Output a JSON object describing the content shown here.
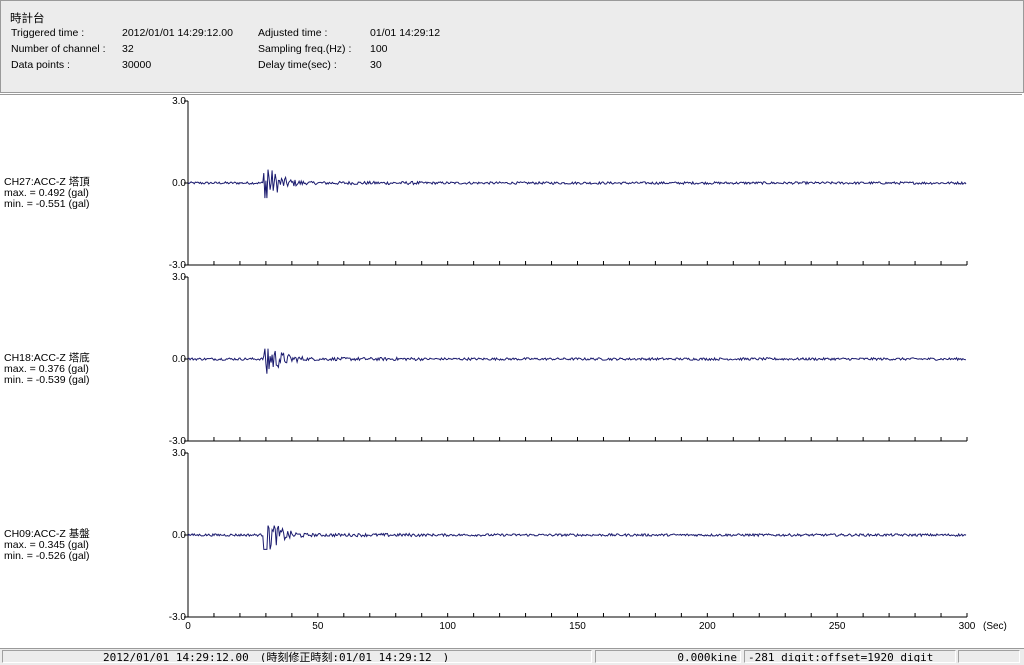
{
  "header": {
    "title": "時計台",
    "triggered_label": "Triggered time :",
    "triggered_value": "2012/01/01 14:29:12.00",
    "channels_label": "Number of channel :",
    "channels_value": "32",
    "datapoints_label": "Data points :",
    "datapoints_value": "30000",
    "adjusted_label": "Adjusted time :",
    "adjusted_value": "01/01 14:29:12",
    "sampling_label": "Sampling freq.(Hz) :",
    "sampling_value": "100",
    "delay_label": "Delay time(sec) :",
    "delay_value": "30"
  },
  "chart_data": {
    "type": "line",
    "x_unit_label": "(Sec)",
    "xlim": [
      0,
      300
    ],
    "x_tick_labels": [
      "0",
      "50",
      "100",
      "150",
      "200",
      "250",
      "300"
    ],
    "ylim": [
      -3.0,
      3.0
    ],
    "y_tick_labels": [
      "3.0",
      "0.0",
      "-3.0"
    ],
    "line_color": "#1a1a6e",
    "series": [
      {
        "name": "CH27:ACC-Z 塔頂",
        "max_text": "max. = 0.492 (gal)",
        "min_text": "min. = -0.551 (gal)",
        "max": 0.492,
        "min": -0.551
      },
      {
        "name": "CH18:ACC-Z 塔底",
        "max_text": "max. = 0.376 (gal)",
        "min_text": "min. = -0.539 (gal)",
        "max": 0.376,
        "min": -0.539
      },
      {
        "name": "CH09:ACC-Z 基盤",
        "max_text": "max. = 0.345 (gal)",
        "min_text": "min. = -0.526 (gal)",
        "max": 0.345,
        "min": -0.526
      }
    ]
  },
  "status": {
    "time_text": "2012/01/01 14:29:12.00　(時刻修正時刻:01/01 14:29:12　)",
    "kine_text": "0.000kine",
    "digit_text": "-281 digit:offset=1920 digit",
    "extra_text": ""
  }
}
